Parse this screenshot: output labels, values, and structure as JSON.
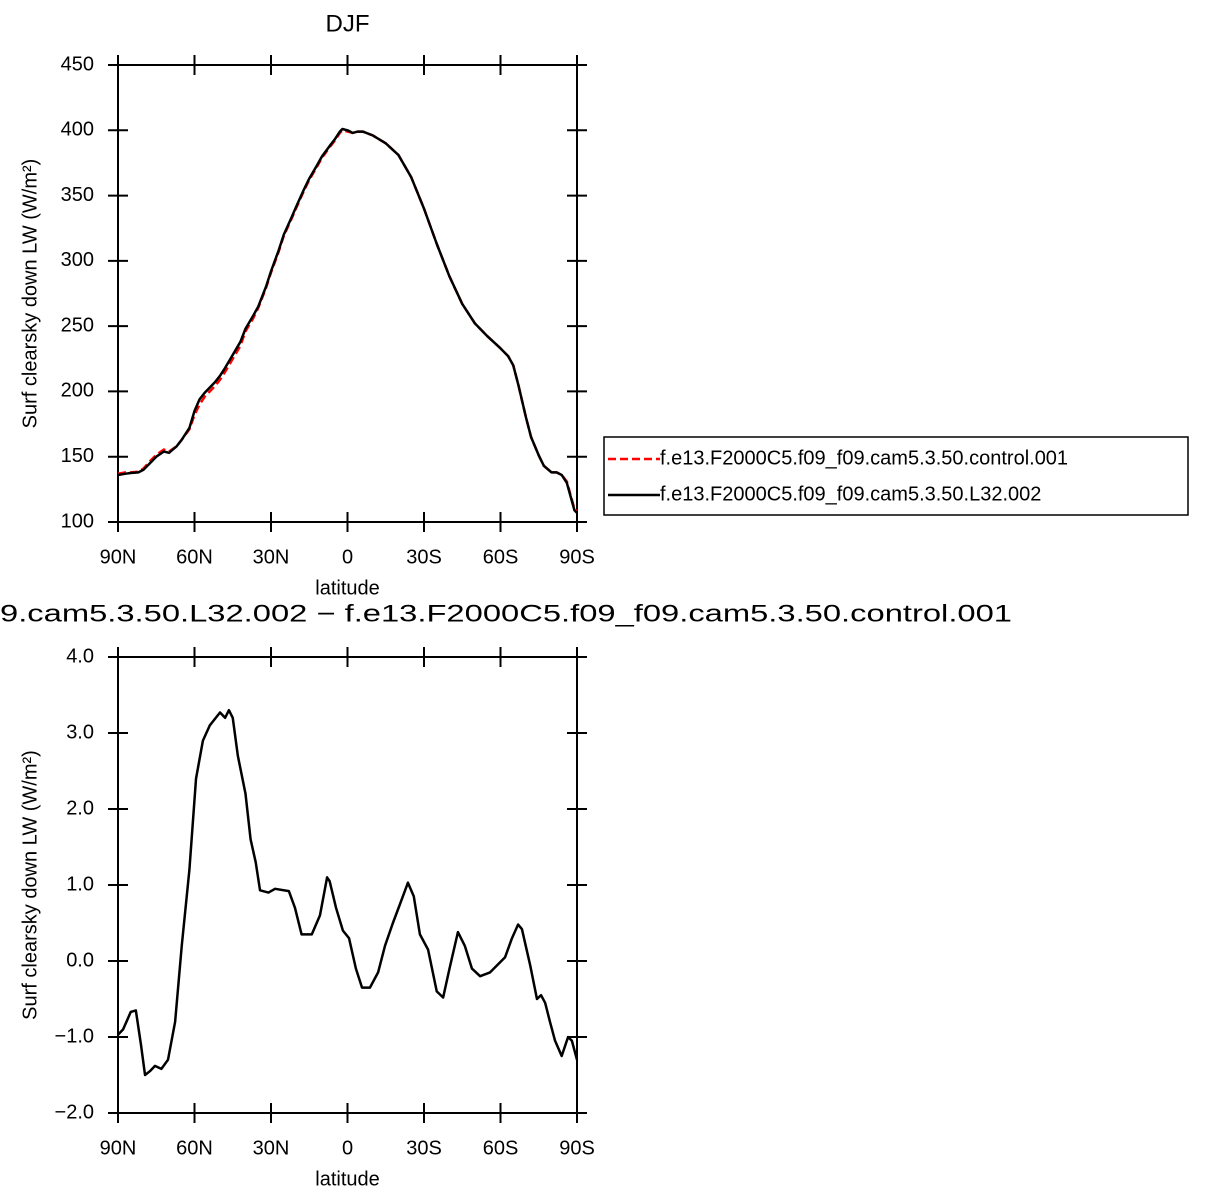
{
  "chart_data": [
    {
      "type": "line",
      "title": "DJF",
      "x_label": "latitude",
      "y_label": "Surf clearsky down LW (W/m²)",
      "x": [
        90,
        87,
        85,
        82,
        80,
        77,
        75,
        72,
        70,
        67,
        65,
        62,
        60,
        58,
        56,
        54,
        52,
        50,
        48,
        45,
        42,
        40,
        37,
        35,
        32,
        30,
        27,
        25,
        22,
        20,
        17,
        15,
        12,
        10,
        7,
        5,
        3,
        2,
        0,
        -2,
        -4,
        -6,
        -10,
        -15,
        -20,
        -25,
        -30,
        -35,
        -40,
        -45,
        -50,
        -55,
        -60,
        -63,
        -65,
        -67,
        -70,
        -72,
        -75,
        -77,
        -80,
        -82,
        -84,
        -86,
        -88,
        -89,
        -90
      ],
      "series": [
        {
          "name": "f.e13.F2000C5.f09_f09.cam5.3.50.control.001",
          "color": "#ff0000",
          "dashed": true,
          "values": [
            137,
            138,
            138,
            138.5,
            141,
            147.5,
            151.5,
            155.5,
            154,
            158,
            163,
            171,
            182,
            190,
            196,
            200,
            204,
            209,
            215,
            225,
            235,
            246,
            256,
            264,
            279,
            291,
            307,
            319,
            332,
            341,
            354,
            362,
            372,
            379,
            387,
            392,
            398,
            400,
            399,
            398,
            399,
            399,
            396,
            390,
            381,
            364,
            340,
            313,
            288,
            267,
            252,
            242,
            233,
            227,
            220,
            205,
            180,
            165,
            151,
            143,
            138,
            138,
            136,
            131,
            117,
            110,
            108
          ]
        },
        {
          "name": "f.e13.F2000C5.f09_f09.cam5.3.50.L32.002",
          "color": "#000000",
          "dashed": false,
          "values": [
            136,
            137,
            137.5,
            138,
            140,
            146,
            150,
            154,
            153,
            158,
            163,
            172,
            185,
            194,
            199,
            203,
            207,
            212,
            218,
            228,
            238,
            248,
            258,
            265,
            280,
            292,
            308,
            320,
            333,
            342,
            355,
            363,
            373,
            380,
            388,
            393,
            399,
            401,
            400,
            398,
            399,
            399,
            396,
            390,
            381,
            364,
            340,
            313,
            288,
            267,
            252,
            242,
            233,
            227,
            220,
            205,
            180,
            165,
            151,
            143,
            138,
            138,
            136,
            130,
            116,
            109,
            107
          ]
        }
      ],
      "xlim": [
        90,
        -90
      ],
      "xticks": [
        {
          "value": 90,
          "label": "90N"
        },
        {
          "value": 60,
          "label": "60N"
        },
        {
          "value": 30,
          "label": "30N"
        },
        0,
        {
          "value": -30,
          "label": "30S"
        },
        {
          "value": -60,
          "label": "60S"
        },
        {
          "value": -90,
          "label": "90S"
        }
      ],
      "ylim": [
        100,
        450
      ],
      "yticks": [
        100,
        150,
        200,
        250,
        300,
        350,
        400,
        450
      ]
    },
    {
      "type": "line",
      "title": "9.cam5.3.50.L32.002 − f.e13.F2000C5.f09_f09.cam5.3.50.control.001",
      "x_label": "latitude",
      "y_label": "Surf clearsky down LW (W/m²)",
      "x": [
        90,
        88,
        85,
        83,
        81,
        79.4,
        77.5,
        75.5,
        73,
        70.4,
        67.6,
        65,
        62,
        59.4,
        56.7,
        54,
        50,
        48,
        46.5,
        45,
        43,
        40,
        38,
        36,
        34.3,
        31,
        28.4,
        23,
        20.6,
        18,
        14,
        10.8,
        8,
        7,
        4.5,
        1.8,
        -0.6,
        -3.3,
        -5.7,
        -8.8,
        -12,
        -14.7,
        -17.8,
        -20.6,
        -23.7,
        -26,
        -28.4,
        -31.6,
        -35,
        -37.5,
        -40,
        -43.3,
        -46,
        -48.8,
        -52,
        -55.9,
        -61.8,
        -64.5,
        -66.9,
        -68.4,
        -71.6,
        -74.3,
        -75.9,
        -77.5,
        -79.4,
        -81.4,
        -84,
        -86.5,
        -88,
        -90
      ],
      "series": [
        {
          "color": "#000000",
          "dashed": false,
          "values": [
            -0.97,
            -0.9,
            -0.67,
            -0.65,
            -1.1,
            -1.5,
            -1.45,
            -1.38,
            -1.42,
            -1.3,
            -0.8,
            0.2,
            1.2,
            2.4,
            2.9,
            3.1,
            3.27,
            3.2,
            3.3,
            3.2,
            2.7,
            2.2,
            1.6,
            1.3,
            0.93,
            0.9,
            0.95,
            0.92,
            0.7,
            0.35,
            0.35,
            0.6,
            1.1,
            1.05,
            0.7,
            0.4,
            0.3,
            -0.1,
            -0.35,
            -0.35,
            -0.15,
            0.2,
            0.5,
            0.75,
            1.03,
            0.85,
            0.35,
            0.15,
            -0.4,
            -0.48,
            -0.1,
            0.38,
            0.2,
            -0.1,
            -0.2,
            -0.15,
            0.05,
            0.3,
            0.48,
            0.42,
            -0.05,
            -0.5,
            -0.45,
            -0.55,
            -0.8,
            -1.05,
            -1.25,
            -1.0,
            -1.05,
            -1.3
          ]
        }
      ],
      "xlim": [
        90,
        -90
      ],
      "xticks": [
        {
          "value": 90,
          "label": "90N"
        },
        {
          "value": 60,
          "label": "60N"
        },
        {
          "value": 30,
          "label": "30N"
        },
        0,
        {
          "value": -30,
          "label": "30S"
        },
        {
          "value": -60,
          "label": "60S"
        },
        {
          "value": -90,
          "label": "90S"
        }
      ],
      "ylim": [
        -2,
        4
      ],
      "yticks": [
        {
          "value": -2,
          "label": "−2.0"
        },
        {
          "value": -1,
          "label": "−1.0"
        },
        {
          "value": 0,
          "label": "0.0"
        },
        {
          "value": 1,
          "label": "1.0"
        },
        {
          "value": 2,
          "label": "2.0"
        },
        {
          "value": 3,
          "label": "3.0"
        },
        {
          "value": 4,
          "label": "4.0"
        }
      ]
    }
  ]
}
